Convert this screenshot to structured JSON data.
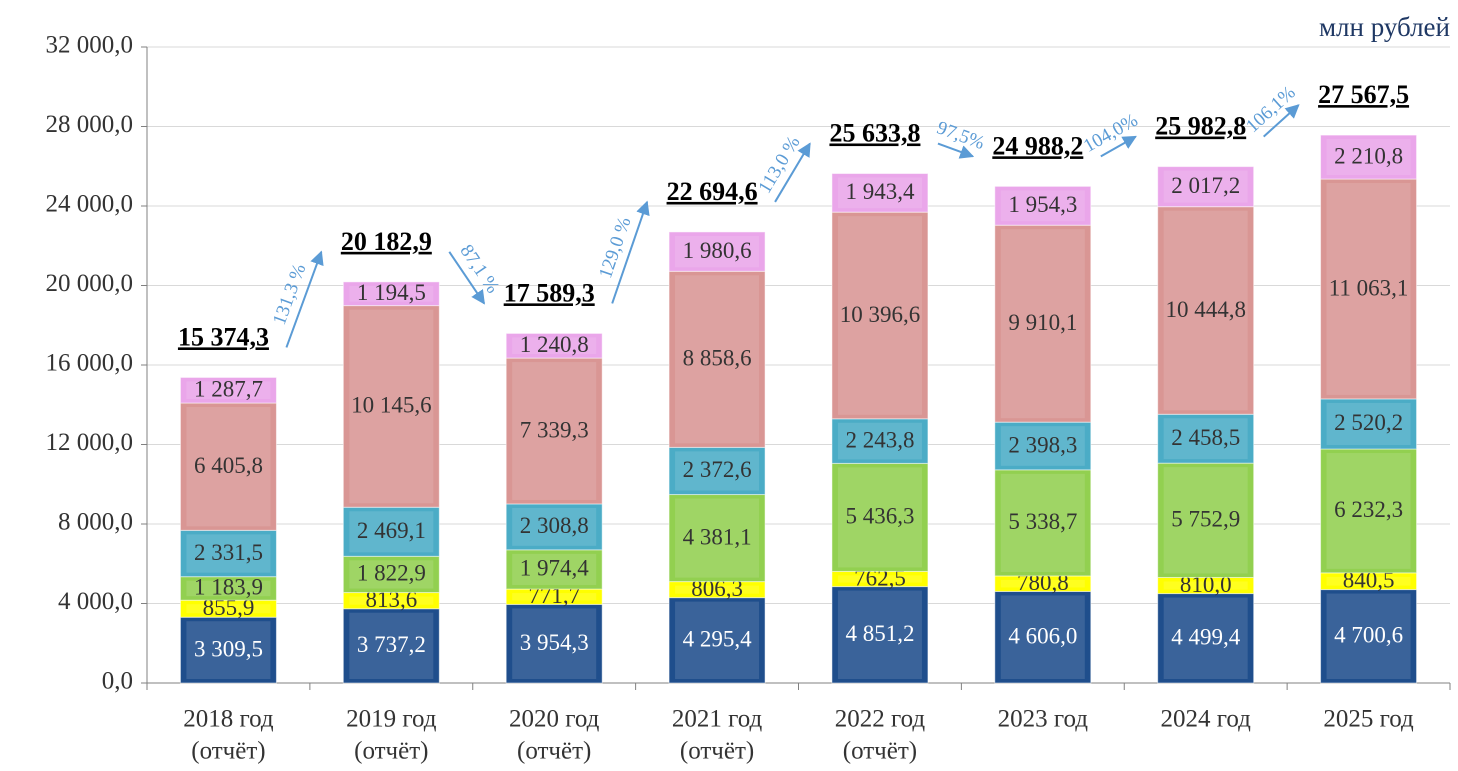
{
  "chart_data": {
    "type": "stacked_bar",
    "unit_label": "млн рублей",
    "categories": [
      [
        "2018 год",
        "(отчёт)"
      ],
      [
        "2019 год",
        "(отчёт)"
      ],
      [
        "2020 год",
        "(отчёт)"
      ],
      [
        "2021 год",
        "(отчёт)"
      ],
      [
        "2022 год",
        "(отчёт)"
      ],
      [
        "2023 год"
      ],
      [
        "2024 год"
      ],
      [
        "2025 год"
      ]
    ],
    "series": [
      {
        "color": "#1f4e8c",
        "values": [
          3309.5,
          3737.2,
          3954.3,
          4295.4,
          4851.2,
          4606.0,
          4499.4,
          4700.6
        ],
        "value_labels": [
          "3 309,5",
          "3 737,2",
          "3 954,3",
          "4 295,4",
          "4 851,2",
          "4 606,0",
          "4 499,4",
          "4 700,6"
        ]
      },
      {
        "color": "#ffff00",
        "values": [
          855.9,
          813.6,
          771.7,
          806.3,
          762.5,
          780.8,
          810.0,
          840.5
        ],
        "value_labels": [
          "855,9",
          "813,6",
          "771,7",
          "806,3",
          "762,5",
          "780,8",
          "810,0",
          "840,5"
        ]
      },
      {
        "color": "#92d050",
        "values": [
          1183.9,
          1822.9,
          1974.4,
          4381.1,
          5436.3,
          5338.7,
          5752.9,
          6232.3
        ],
        "value_labels": [
          "1 183,9",
          "1 822,9",
          "1 974,4",
          "4 381,1",
          "5 436,3",
          "5 338,7",
          "5 752,9",
          "6 232,3"
        ]
      },
      {
        "color": "#4bacc6",
        "values": [
          2331.5,
          2469.1,
          2308.8,
          2372.6,
          2243.8,
          2398.3,
          2458.5,
          2520.2
        ],
        "value_labels": [
          "2 331,5",
          "2 469,1",
          "2 308,8",
          "2 372,6",
          "2 243,8",
          "2 398,3",
          "2 458,5",
          "2 520,2"
        ]
      },
      {
        "color": "#d99694",
        "values": [
          6405.8,
          10145.6,
          7339.3,
          8858.6,
          10396.6,
          9910.1,
          10444.8,
          11063.1
        ],
        "value_labels": [
          "6 405,8",
          "10 145,6",
          "7 339,3",
          "8 858,6",
          "10 396,6",
          "9 910,1",
          "10 444,8",
          "11 063,1"
        ]
      },
      {
        "color": "#eaa6ea",
        "values": [
          1287.7,
          1194.5,
          1240.8,
          1980.6,
          1943.4,
          1954.3,
          2017.2,
          2210.8
        ],
        "value_labels": [
          "1 287,7",
          "1 194,5",
          "1 240,8",
          "1 980,6",
          "1 943,4",
          "1 954,3",
          "2 017,2",
          "2 210,8"
        ]
      }
    ],
    "totals": {
      "values": [
        15374.3,
        20182.9,
        17589.3,
        22694.6,
        25633.8,
        24988.2,
        25982.8,
        27567.5
      ],
      "value_labels": [
        "15 374,3",
        "20 182,9",
        "17 589,3",
        "22 694,6",
        "25 633,8",
        "24 988,2",
        "25 982,8",
        "27 567,5"
      ]
    },
    "growth": {
      "color": "#5b9bd5",
      "values": [
        131.3,
        87.1,
        129.0,
        113.0,
        97.5,
        104.0,
        106.1
      ],
      "value_labels": [
        "131,3 %",
        "87,1 %",
        "129,0 %",
        "113,0 %",
        "97,5%",
        "104,0%",
        "106,1%"
      ]
    },
    "ylim": [
      0,
      32000
    ],
    "yticks": [
      {
        "value": 0,
        "label": "0,0"
      },
      {
        "value": 4000,
        "label": "4 000,0"
      },
      {
        "value": 8000,
        "label": "8 000,0"
      },
      {
        "value": 12000,
        "label": "12 000,0"
      },
      {
        "value": 16000,
        "label": "16 000,0"
      },
      {
        "value": 20000,
        "label": "20 000,0"
      },
      {
        "value": 24000,
        "label": "24 000,0"
      },
      {
        "value": 28000,
        "label": "28 000,0"
      },
      {
        "value": 32000,
        "label": "32 000,0"
      }
    ],
    "grid": true
  }
}
